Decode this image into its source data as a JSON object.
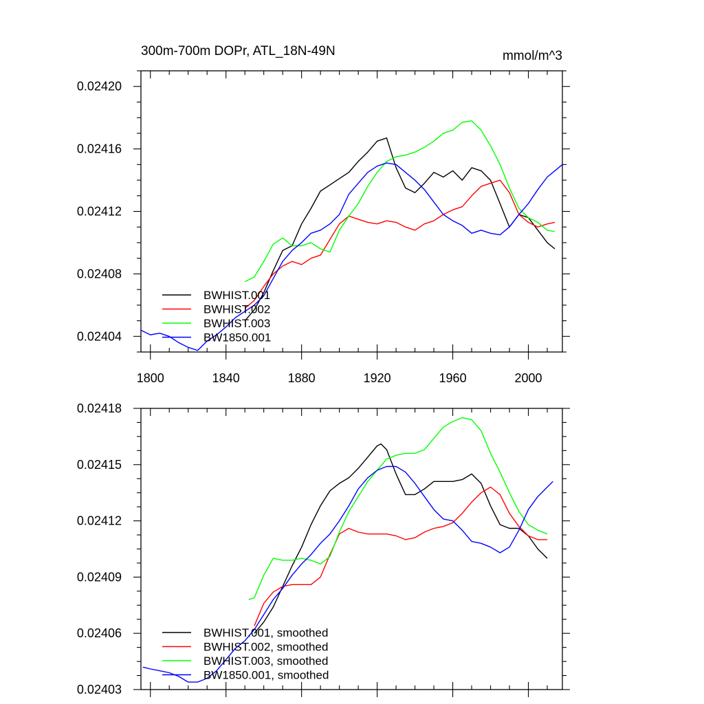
{
  "chart_data": [
    {
      "type": "line",
      "title": "300m-700m DOPr, ATL_18N-49N",
      "units": "mmol/m^3",
      "xlabel": "",
      "ylabel": "",
      "xlim": [
        1795,
        2018
      ],
      "ylim": [
        0.02403,
        0.02421
      ],
      "xticks": [
        1800,
        1840,
        1880,
        1920,
        1960,
        2000
      ],
      "yticks": [
        0.02404,
        0.02408,
        0.02412,
        0.02416,
        0.0242
      ],
      "ytick_labels": [
        "0.02404",
        "0.02408",
        "0.02412",
        "0.02416",
        "0.02420"
      ],
      "legend_position": "bottom-left",
      "series": [
        {
          "name": "BWHIST.001",
          "color": "#000000",
          "x": [
            1850,
            1855,
            1860,
            1865,
            1870,
            1875,
            1880,
            1885,
            1890,
            1895,
            1900,
            1905,
            1910,
            1915,
            1920,
            1925,
            1930,
            1935,
            1940,
            1945,
            1950,
            1955,
            1960,
            1965,
            1970,
            1975,
            1980,
            1985,
            1990,
            1995,
            2000,
            2005,
            2010,
            2014
          ],
          "y": [
            0.02405,
            0.024057,
            0.024068,
            0.024082,
            0.024095,
            0.024098,
            0.024112,
            0.024122,
            0.024133,
            0.024137,
            0.024141,
            0.024145,
            0.024152,
            0.024158,
            0.024165,
            0.024167,
            0.024148,
            0.024135,
            0.024132,
            0.024138,
            0.024145,
            0.024142,
            0.024146,
            0.02414,
            0.024148,
            0.024146,
            0.02414,
            0.024125,
            0.02411,
            0.024118,
            0.024116,
            0.024108,
            0.0241,
            0.024096
          ]
        },
        {
          "name": "BWHIST.002",
          "color": "#ff0000",
          "x": [
            1850,
            1855,
            1860,
            1865,
            1870,
            1875,
            1880,
            1885,
            1890,
            1895,
            1900,
            1905,
            1910,
            1915,
            1920,
            1925,
            1930,
            1935,
            1940,
            1945,
            1950,
            1955,
            1960,
            1965,
            1970,
            1975,
            1980,
            1985,
            1990,
            1995,
            2000,
            2005,
            2010,
            2014
          ],
          "y": [
            0.024058,
            0.024063,
            0.024072,
            0.02408,
            0.024085,
            0.024088,
            0.024086,
            0.02409,
            0.024092,
            0.024102,
            0.024112,
            0.024117,
            0.024115,
            0.024113,
            0.024112,
            0.024114,
            0.024113,
            0.02411,
            0.024108,
            0.024112,
            0.024114,
            0.024118,
            0.024121,
            0.024123,
            0.02413,
            0.024136,
            0.024138,
            0.02414,
            0.024132,
            0.024118,
            0.024113,
            0.02411,
            0.024112,
            0.024113
          ]
        },
        {
          "name": "BWHIST.003",
          "color": "#00ff00",
          "x": [
            1850,
            1855,
            1860,
            1865,
            1870,
            1875,
            1880,
            1885,
            1890,
            1895,
            1900,
            1905,
            1910,
            1915,
            1920,
            1925,
            1930,
            1935,
            1940,
            1945,
            1950,
            1955,
            1960,
            1965,
            1970,
            1975,
            1980,
            1985,
            1990,
            1995,
            2000,
            2005,
            2010,
            2014
          ],
          "y": [
            0.024075,
            0.024078,
            0.024088,
            0.024099,
            0.024103,
            0.024098,
            0.024098,
            0.0241,
            0.024096,
            0.024094,
            0.024108,
            0.024117,
            0.024125,
            0.024136,
            0.024145,
            0.024152,
            0.024155,
            0.024156,
            0.024158,
            0.024161,
            0.024165,
            0.02417,
            0.024172,
            0.024177,
            0.024178,
            0.024172,
            0.024162,
            0.02415,
            0.024135,
            0.024122,
            0.024116,
            0.024113,
            0.024108,
            0.024107
          ]
        },
        {
          "name": "BW1850.001",
          "color": "#0000ff",
          "x": [
            1795,
            1800,
            1805,
            1810,
            1815,
            1820,
            1825,
            1830,
            1835,
            1840,
            1845,
            1850,
            1855,
            1860,
            1865,
            1870,
            1875,
            1880,
            1885,
            1890,
            1895,
            1900,
            1905,
            1910,
            1915,
            1920,
            1925,
            1930,
            1935,
            1940,
            1945,
            1950,
            1955,
            1960,
            1965,
            1970,
            1975,
            1980,
            1985,
            1990,
            1995,
            2000,
            2005,
            2010,
            2015,
            2018
          ],
          "y": [
            0.024044,
            0.024041,
            0.024042,
            0.02404,
            0.024036,
            0.024033,
            0.024031,
            0.024037,
            0.024041,
            0.024046,
            0.024052,
            0.024056,
            0.02406,
            0.024066,
            0.024077,
            0.024088,
            0.024095,
            0.0241,
            0.024106,
            0.024108,
            0.024112,
            0.024118,
            0.024131,
            0.024138,
            0.024145,
            0.024149,
            0.024151,
            0.02415,
            0.024145,
            0.02414,
            0.024134,
            0.024126,
            0.024118,
            0.024114,
            0.024111,
            0.024106,
            0.024108,
            0.024106,
            0.024105,
            0.02411,
            0.024118,
            0.024125,
            0.024134,
            0.024142,
            0.024147,
            0.02415
          ]
        }
      ],
      "legend": [
        "BWHIST.001",
        "BWHIST.002",
        "BWHIST.003",
        "BW1850.001"
      ]
    },
    {
      "type": "line",
      "title": "",
      "xlabel": "",
      "ylabel": "",
      "xlim": [
        1795,
        2018
      ],
      "ylim": [
        0.02403,
        0.02418
      ],
      "xticks": [
        1800,
        1840,
        1880,
        1920,
        1960,
        2000
      ],
      "yticks": [
        0.02403,
        0.02406,
        0.02409,
        0.02412,
        0.02415,
        0.02418
      ],
      "ytick_labels": [
        "0.02403",
        "0.02406",
        "0.02409",
        "0.02412",
        "0.02415",
        "0.02418"
      ],
      "legend_position": "bottom-left",
      "series": [
        {
          "name": "BWHIST.001, smoothed",
          "color": "#000000",
          "x": [
            1855,
            1860,
            1865,
            1870,
            1875,
            1880,
            1885,
            1890,
            1895,
            1900,
            1905,
            1910,
            1915,
            1920,
            1922,
            1925,
            1930,
            1935,
            1940,
            1945,
            1950,
            1955,
            1960,
            1965,
            1970,
            1975,
            1980,
            1985,
            1990,
            1995,
            2000,
            2005,
            2010
          ],
          "y": [
            0.02406,
            0.024066,
            0.024074,
            0.024085,
            0.024096,
            0.024106,
            0.024118,
            0.024128,
            0.024136,
            0.02414,
            0.024143,
            0.024148,
            0.024154,
            0.02416,
            0.024161,
            0.024158,
            0.024145,
            0.024134,
            0.024134,
            0.024137,
            0.024141,
            0.024141,
            0.024141,
            0.024142,
            0.024145,
            0.02414,
            0.024128,
            0.024118,
            0.024116,
            0.024116,
            0.024112,
            0.024105,
            0.0241
          ]
        },
        {
          "name": "BWHIST.002, smoothed",
          "color": "#ff0000",
          "x": [
            1855,
            1860,
            1865,
            1870,
            1875,
            1880,
            1885,
            1890,
            1895,
            1900,
            1905,
            1910,
            1915,
            1920,
            1925,
            1930,
            1935,
            1940,
            1945,
            1950,
            1955,
            1960,
            1965,
            1970,
            1975,
            1980,
            1985,
            1990,
            1995,
            2000,
            2005,
            2010
          ],
          "y": [
            0.024064,
            0.024076,
            0.024082,
            0.024085,
            0.024086,
            0.024086,
            0.024086,
            0.02409,
            0.024102,
            0.024113,
            0.024116,
            0.024114,
            0.024113,
            0.024113,
            0.024113,
            0.024112,
            0.02411,
            0.024111,
            0.024114,
            0.024116,
            0.024117,
            0.024119,
            0.024124,
            0.02413,
            0.024135,
            0.024138,
            0.024134,
            0.024124,
            0.024117,
            0.024112,
            0.02411,
            0.02411
          ]
        },
        {
          "name": "BWHIST.003, smoothed",
          "color": "#00ff00",
          "x": [
            1852,
            1855,
            1860,
            1865,
            1870,
            1875,
            1880,
            1885,
            1890,
            1895,
            1900,
            1905,
            1910,
            1915,
            1920,
            1925,
            1930,
            1935,
            1940,
            1945,
            1950,
            1955,
            1960,
            1965,
            1970,
            1975,
            1980,
            1985,
            1990,
            1995,
            2000,
            2005,
            2010
          ],
          "y": [
            0.024078,
            0.024079,
            0.024091,
            0.0241,
            0.024099,
            0.024099,
            0.0241,
            0.024099,
            0.024097,
            0.024101,
            0.024114,
            0.024125,
            0.024133,
            0.024141,
            0.024147,
            0.024153,
            0.024155,
            0.024156,
            0.024156,
            0.024158,
            0.024164,
            0.02417,
            0.024173,
            0.024175,
            0.024174,
            0.024168,
            0.024156,
            0.024146,
            0.024135,
            0.024125,
            0.024118,
            0.024115,
            0.024113
          ]
        },
        {
          "name": "BW1850.001, smoothed",
          "color": "#0000ff",
          "x": [
            1796,
            1800,
            1805,
            1810,
            1815,
            1820,
            1825,
            1830,
            1835,
            1840,
            1845,
            1850,
            1855,
            1860,
            1865,
            1870,
            1875,
            1880,
            1885,
            1890,
            1895,
            1900,
            1905,
            1910,
            1915,
            1920,
            1925,
            1930,
            1935,
            1940,
            1945,
            1950,
            1955,
            1960,
            1965,
            1970,
            1975,
            1980,
            1985,
            1990,
            1995,
            2000,
            2005,
            2010,
            2013
          ],
          "y": [
            0.024042,
            0.024041,
            0.02404,
            0.024039,
            0.024037,
            0.024034,
            0.024034,
            0.024036,
            0.02404,
            0.024046,
            0.024052,
            0.024056,
            0.024062,
            0.02407,
            0.024078,
            0.024084,
            0.024091,
            0.024097,
            0.024102,
            0.024108,
            0.024113,
            0.02412,
            0.024128,
            0.024137,
            0.024143,
            0.024147,
            0.024149,
            0.024149,
            0.024146,
            0.02414,
            0.024133,
            0.024126,
            0.024121,
            0.02412,
            0.024115,
            0.024109,
            0.024108,
            0.024106,
            0.024103,
            0.024106,
            0.024115,
            0.024126,
            0.024133,
            0.024138,
            0.024141
          ]
        }
      ],
      "legend": [
        "BWHIST.001, smoothed",
        "BWHIST.002, smoothed",
        "BWHIST.003, smoothed",
        "BW1850.001, smoothed"
      ]
    }
  ]
}
